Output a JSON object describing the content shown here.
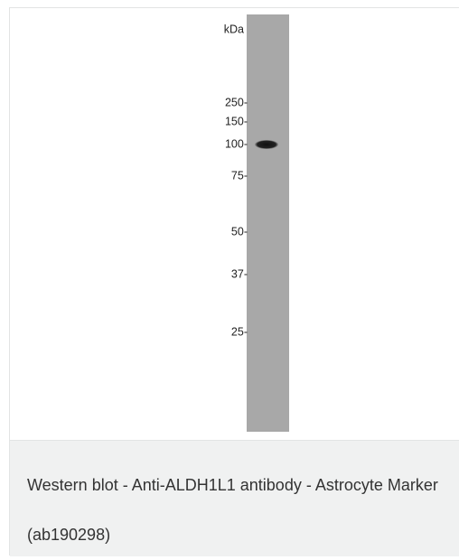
{
  "blot": {
    "unit_label": "kDa",
    "markers": [
      "250-",
      "150-",
      "100-",
      "75-",
      "50-",
      "37-",
      "25-"
    ]
  },
  "caption": "Western blot - Anti-ALDH1L1 antibody - Astrocyte Marker (ab190298)"
}
